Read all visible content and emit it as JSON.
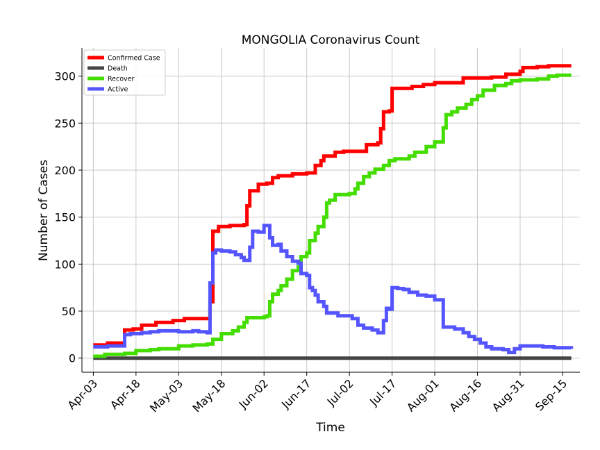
{
  "chart_data": {
    "type": "line",
    "title": "MONGOLIA Coronavirus Count",
    "xlabel": "Time",
    "ylabel": "Number of Cases",
    "x_tick_labels": [
      "Apr-03",
      "Apr-18",
      "May-03",
      "May-18",
      "Jun-02",
      "Jun-17",
      "Jul-02",
      "Jul-17",
      "Aug-01",
      "Aug-16",
      "Aug-31",
      "Sep-15"
    ],
    "x_tick_days": [
      0,
      15,
      30,
      45,
      60,
      75,
      90,
      105,
      120,
      135,
      150,
      165
    ],
    "x_start_label": "Apr-03",
    "y_tick_labels": [
      "0",
      "50",
      "100",
      "150",
      "200",
      "250",
      "300"
    ],
    "y_ticks": [
      0,
      50,
      100,
      150,
      200,
      250,
      300
    ],
    "ylim": [
      -15,
      330
    ],
    "grid": true,
    "legend_position": "top-left",
    "series": [
      {
        "name": "Confirmed Case",
        "color": "#ff0000",
        "points": [
          [
            0,
            14
          ],
          [
            5,
            16
          ],
          [
            11,
            30
          ],
          [
            14,
            31
          ],
          [
            17,
            35
          ],
          [
            22,
            38
          ],
          [
            28,
            40
          ],
          [
            32,
            42
          ],
          [
            40,
            42
          ],
          [
            41,
            60
          ],
          [
            42,
            135
          ],
          [
            44,
            140
          ],
          [
            48,
            141
          ],
          [
            53,
            142
          ],
          [
            54,
            162
          ],
          [
            55,
            178
          ],
          [
            58,
            185
          ],
          [
            61,
            186
          ],
          [
            63,
            192
          ],
          [
            65,
            194
          ],
          [
            70,
            196
          ],
          [
            75,
            197
          ],
          [
            78,
            205
          ],
          [
            80,
            210
          ],
          [
            81,
            215
          ],
          [
            85,
            219
          ],
          [
            88,
            220
          ],
          [
            95,
            220
          ],
          [
            96,
            227
          ],
          [
            100,
            229
          ],
          [
            101,
            244
          ],
          [
            102,
            262
          ],
          [
            104,
            263
          ],
          [
            105,
            287
          ],
          [
            110,
            287
          ],
          [
            112,
            289
          ],
          [
            116,
            291
          ],
          [
            120,
            293
          ],
          [
            130,
            298
          ],
          [
            140,
            299
          ],
          [
            145,
            302
          ],
          [
            150,
            305
          ],
          [
            151,
            309
          ],
          [
            156,
            310
          ],
          [
            160,
            311
          ],
          [
            168,
            311
          ]
        ]
      },
      {
        "name": "Death",
        "color": "#444444",
        "points": [
          [
            0,
            0
          ],
          [
            168,
            0
          ]
        ]
      },
      {
        "name": "Recover",
        "color": "#44dd00",
        "points": [
          [
            0,
            2
          ],
          [
            4,
            4
          ],
          [
            11,
            5
          ],
          [
            15,
            8
          ],
          [
            20,
            9
          ],
          [
            23,
            10
          ],
          [
            30,
            13
          ],
          [
            35,
            14
          ],
          [
            40,
            15
          ],
          [
            42,
            20
          ],
          [
            45,
            26
          ],
          [
            49,
            29
          ],
          [
            51,
            33
          ],
          [
            53,
            38
          ],
          [
            54,
            43
          ],
          [
            60,
            44
          ],
          [
            61,
            45
          ],
          [
            62,
            60
          ],
          [
            63,
            68
          ],
          [
            65,
            72
          ],
          [
            66,
            77
          ],
          [
            68,
            84
          ],
          [
            70,
            93
          ],
          [
            72,
            97
          ],
          [
            73,
            108
          ],
          [
            75,
            112
          ],
          [
            76,
            125
          ],
          [
            78,
            133
          ],
          [
            79,
            140
          ],
          [
            81,
            150
          ],
          [
            82,
            165
          ],
          [
            83,
            168
          ],
          [
            85,
            174
          ],
          [
            90,
            175
          ],
          [
            92,
            180
          ],
          [
            93,
            186
          ],
          [
            95,
            193
          ],
          [
            97,
            197
          ],
          [
            99,
            201
          ],
          [
            102,
            205
          ],
          [
            104,
            210
          ],
          [
            106,
            212
          ],
          [
            111,
            215
          ],
          [
            113,
            219
          ],
          [
            117,
            225
          ],
          [
            120,
            230
          ],
          [
            123,
            245
          ],
          [
            124,
            259
          ],
          [
            126,
            262
          ],
          [
            128,
            266
          ],
          [
            131,
            270
          ],
          [
            133,
            275
          ],
          [
            135,
            279
          ],
          [
            137,
            285
          ],
          [
            141,
            290
          ],
          [
            145,
            292
          ],
          [
            147,
            295
          ],
          [
            150,
            296
          ],
          [
            156,
            297
          ],
          [
            160,
            300
          ],
          [
            163,
            301
          ],
          [
            168,
            301
          ]
        ]
      },
      {
        "name": "Active",
        "color": "#5555ff",
        "points": [
          [
            0,
            12
          ],
          [
            5,
            13
          ],
          [
            10,
            13
          ],
          [
            11,
            25
          ],
          [
            13,
            26
          ],
          [
            17,
            27
          ],
          [
            20,
            28
          ],
          [
            23,
            29
          ],
          [
            25,
            29
          ],
          [
            30,
            28
          ],
          [
            35,
            29
          ],
          [
            37,
            28
          ],
          [
            40,
            27
          ],
          [
            41,
            80
          ],
          [
            42,
            112
          ],
          [
            43,
            115
          ],
          [
            45,
            114
          ],
          [
            48,
            113
          ],
          [
            50,
            110
          ],
          [
            52,
            107
          ],
          [
            53,
            104
          ],
          [
            55,
            118
          ],
          [
            56,
            135
          ],
          [
            58,
            134
          ],
          [
            60,
            141
          ],
          [
            62,
            128
          ],
          [
            63,
            120
          ],
          [
            65,
            121
          ],
          [
            66,
            114
          ],
          [
            68,
            108
          ],
          [
            70,
            103
          ],
          [
            72,
            101
          ],
          [
            73,
            90
          ],
          [
            75,
            88
          ],
          [
            76,
            75
          ],
          [
            77,
            72
          ],
          [
            78,
            67
          ],
          [
            79,
            60
          ],
          [
            81,
            55
          ],
          [
            82,
            48
          ],
          [
            84,
            48
          ],
          [
            86,
            45
          ],
          [
            89,
            45
          ],
          [
            91,
            42
          ],
          [
            93,
            35
          ],
          [
            95,
            32
          ],
          [
            98,
            30
          ],
          [
            100,
            27
          ],
          [
            102,
            40
          ],
          [
            103,
            53
          ],
          [
            104,
            52
          ],
          [
            105,
            75
          ],
          [
            107,
            74
          ],
          [
            109,
            73
          ],
          [
            111,
            70
          ],
          [
            114,
            67
          ],
          [
            117,
            66
          ],
          [
            120,
            62
          ],
          [
            123,
            33
          ],
          [
            127,
            31
          ],
          [
            130,
            27
          ],
          [
            132,
            23
          ],
          [
            134,
            20
          ],
          [
            136,
            16
          ],
          [
            138,
            12
          ],
          [
            140,
            10
          ],
          [
            142,
            10
          ],
          [
            144,
            9
          ],
          [
            146,
            6
          ],
          [
            148,
            10
          ],
          [
            150,
            13
          ],
          [
            156,
            13
          ],
          [
            158,
            12
          ],
          [
            162,
            11
          ],
          [
            168,
            10
          ]
        ]
      }
    ]
  }
}
